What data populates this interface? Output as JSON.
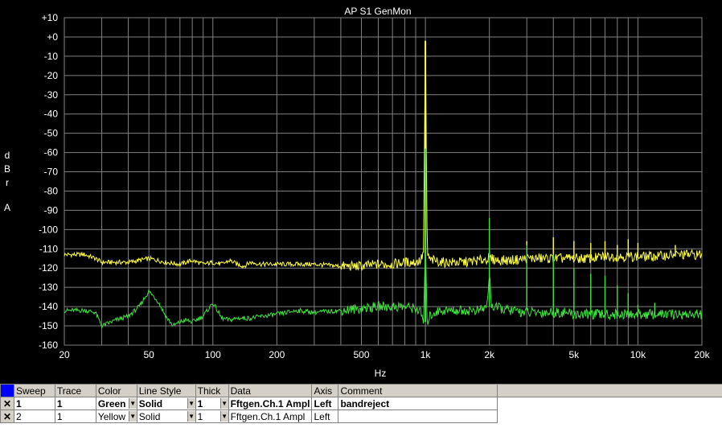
{
  "chart_data": {
    "type": "line",
    "title": "AP S1 GenMon",
    "xlabel": "Hz",
    "ylabel": "dBr A",
    "xscale": "log",
    "xlim": [
      20,
      20000
    ],
    "ylim": [
      -160,
      10
    ],
    "grid": true,
    "xticks": [
      {
        "v": 20,
        "label": "20"
      },
      {
        "v": 50,
        "label": "50"
      },
      {
        "v": 100,
        "label": "100"
      },
      {
        "v": 200,
        "label": "200"
      },
      {
        "v": 500,
        "label": "500"
      },
      {
        "v": 1000,
        "label": "1k"
      },
      {
        "v": 2000,
        "label": "2k"
      },
      {
        "v": 5000,
        "label": "5k"
      },
      {
        "v": 10000,
        "label": "10k"
      },
      {
        "v": 20000,
        "label": "20k"
      }
    ],
    "yticks": [
      {
        "v": 10,
        "label": "+10"
      },
      {
        "v": 0,
        "label": "+0"
      },
      {
        "v": -10,
        "label": "-10"
      },
      {
        "v": -20,
        "label": "-20"
      },
      {
        "v": -30,
        "label": "-30"
      },
      {
        "v": -40,
        "label": "-40"
      },
      {
        "v": -50,
        "label": "-50"
      },
      {
        "v": -60,
        "label": "-60"
      },
      {
        "v": -70,
        "label": "-70"
      },
      {
        "v": -80,
        "label": "-80"
      },
      {
        "v": -90,
        "label": "-90"
      },
      {
        "v": -100,
        "label": "-100"
      },
      {
        "v": -110,
        "label": "-110"
      },
      {
        "v": -120,
        "label": "-120"
      },
      {
        "v": -130,
        "label": "-130"
      },
      {
        "v": -140,
        "label": "-140"
      },
      {
        "v": -150,
        "label": "-150"
      },
      {
        "v": -160,
        "label": "-160"
      }
    ],
    "series": [
      {
        "color": "#ffff40",
        "x": [
          20,
          25,
          28,
          30,
          35,
          40,
          45,
          50,
          55,
          60,
          70,
          80,
          90,
          100,
          110,
          120,
          130,
          140,
          150,
          170,
          200,
          250,
          300,
          400,
          500,
          600,
          700,
          800,
          900,
          950,
          980,
          1000,
          1020,
          1050,
          1100,
          1200,
          1500,
          1800,
          2000,
          2200,
          2500,
          3000,
          3500,
          4000,
          4500,
          5000,
          6000,
          7000,
          8000,
          9000,
          10000,
          12000,
          15000,
          18000,
          20000
        ],
        "y": [
          -113,
          -113,
          -115,
          -117,
          -117,
          -117,
          -116,
          -115,
          -116,
          -117,
          -118,
          -116,
          -118,
          -117,
          -118,
          -116,
          -118,
          -119,
          -117,
          -118,
          -118,
          -118,
          -118,
          -119,
          -119,
          -118,
          -118,
          -117,
          -117,
          -116,
          -112,
          -2,
          -112,
          -116,
          -116,
          -117,
          -117,
          -116,
          -115,
          -116,
          -116,
          -115,
          -115,
          -115,
          -115,
          -115,
          -115,
          -114,
          -114,
          -114,
          -114,
          -114,
          -113,
          -113,
          -113
        ]
      },
      {
        "color": "#40e040",
        "x": [
          20,
          25,
          28,
          30,
          35,
          40,
          45,
          50,
          55,
          60,
          65,
          70,
          75,
          80,
          90,
          100,
          110,
          120,
          130,
          140,
          150,
          170,
          200,
          250,
          300,
          400,
          500,
          600,
          700,
          800,
          900,
          950,
          980,
          1000,
          1020,
          1050,
          1100,
          1200,
          1500,
          1800,
          1950,
          2000,
          2050,
          2500,
          3000,
          3500,
          4000,
          4500,
          5000,
          6000,
          7000,
          8000,
          9000,
          10000,
          12000,
          15000,
          18000,
          20000
        ],
        "y": [
          -142,
          -142,
          -143,
          -150,
          -147,
          -145,
          -140,
          -132,
          -137,
          -145,
          -150,
          -148,
          -147,
          -148,
          -145,
          -138,
          -146,
          -147,
          -146,
          -146,
          -146,
          -145,
          -144,
          -142,
          -143,
          -142,
          -141,
          -140,
          -140,
          -140,
          -141,
          -143,
          -148,
          -110,
          -148,
          -145,
          -143,
          -142,
          -142,
          -142,
          -140,
          -122,
          -140,
          -142,
          -143,
          -143,
          -143,
          -143,
          -144,
          -144,
          -144,
          -144,
          -144,
          -144,
          -144,
          -144,
          -144,
          -144
        ]
      }
    ],
    "peaks": [
      {
        "series": 0,
        "x": 1000,
        "y": -2
      },
      {
        "series": 0,
        "x": 3000,
        "y": -106
      },
      {
        "series": 0,
        "x": 4000,
        "y": -104
      },
      {
        "series": 0,
        "x": 5000,
        "y": -106
      },
      {
        "series": 0,
        "x": 6000,
        "y": -107
      },
      {
        "series": 0,
        "x": 7000,
        "y": -106
      },
      {
        "series": 0,
        "x": 8000,
        "y": -108
      },
      {
        "series": 0,
        "x": 9000,
        "y": -105
      },
      {
        "series": 0,
        "x": 10000,
        "y": -107
      },
      {
        "series": 0,
        "x": 15000,
        "y": -108
      },
      {
        "series": 0,
        "x": 2000,
        "y": -111
      },
      {
        "series": 1,
        "x": 1000,
        "y": -58
      },
      {
        "series": 1,
        "x": 2000,
        "y": -94
      },
      {
        "series": 1,
        "x": 3000,
        "y": -108
      },
      {
        "series": 1,
        "x": 4000,
        "y": -113
      },
      {
        "series": 1,
        "x": 5000,
        "y": -120
      },
      {
        "series": 1,
        "x": 6000,
        "y": -123
      },
      {
        "series": 1,
        "x": 7000,
        "y": -124
      },
      {
        "series": 1,
        "x": 8000,
        "y": -129
      },
      {
        "series": 1,
        "x": 9000,
        "y": -133
      },
      {
        "series": 1,
        "x": 10000,
        "y": -139
      },
      {
        "series": 1,
        "x": 12000,
        "y": -138
      }
    ]
  },
  "ylabel_lines": [
    "d",
    "B",
    "r",
    "A"
  ],
  "logo": "AP",
  "legend": {
    "headers": [
      "Sweep",
      "Trace",
      "Color",
      "Line Style",
      "Thick",
      "Data",
      "Axis",
      "Comment"
    ],
    "rows": [
      {
        "mark": "✕",
        "sweep": "1",
        "trace": "1",
        "color": "Green",
        "style": "Solid",
        "thick": "1",
        "data": "Fftgen.Ch.1 Ampl",
        "axis": "Left",
        "comment": "bandreject"
      },
      {
        "mark": "✕",
        "sweep": "2",
        "trace": "1",
        "color": "Yellow",
        "style": "Solid",
        "thick": "1",
        "data": "Fftgen.Ch.1 Ampl",
        "axis": "Left",
        "comment": ""
      }
    ]
  }
}
